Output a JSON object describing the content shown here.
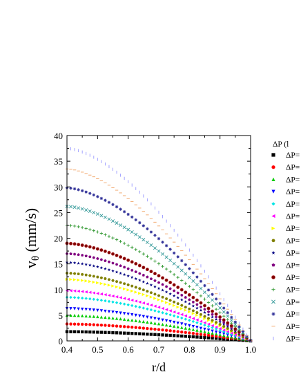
{
  "chart_data": {
    "type": "scatter",
    "xlabel": "r/d",
    "ylabel_main": "v",
    "ylabel_sub": "θ",
    "ylabel_unit": " (mm/s)",
    "xlim": [
      0.4,
      1.0
    ],
    "ylim": [
      0,
      40
    ],
    "x_ticks": [
      "0.4",
      "0.5",
      "0.6",
      "0.7",
      "0.8",
      "0.9",
      "1.0"
    ],
    "y_ticks": [
      "0",
      "5",
      "10",
      "15",
      "20",
      "25",
      "30",
      "35",
      "40"
    ],
    "legend_title": "ΔP (l",
    "legend_label": "ΔP=",
    "legend_position": "right",
    "series": [
      {
        "marker": "square",
        "color": "#000000",
        "v0": 1.8,
        "p": 1.6
      },
      {
        "marker": "circle",
        "color": "#ff0000",
        "v0": 3.3,
        "p": 1.6
      },
      {
        "marker": "triangle",
        "color": "#00cc00",
        "v0": 5.0,
        "p": 1.6
      },
      {
        "marker": "triangle-down",
        "color": "#0000ff",
        "v0": 6.3,
        "p": 1.6
      },
      {
        "marker": "diamond",
        "color": "#00e5e5",
        "v0": 8.5,
        "p": 1.6
      },
      {
        "marker": "triangle-left",
        "color": "#ff00ff",
        "v0": 9.8,
        "p": 1.6
      },
      {
        "marker": "triangle-right",
        "color": "#ffff00",
        "v0": 12.0,
        "p": 1.6
      },
      {
        "marker": "hexagon",
        "color": "#808000",
        "v0": 13.2,
        "p": 1.6
      },
      {
        "marker": "star",
        "color": "#000080",
        "v0": 15.3,
        "p": 1.6
      },
      {
        "marker": "pentagon",
        "color": "#800080",
        "v0": 17.0,
        "p": 1.6
      },
      {
        "marker": "circle-half",
        "color": "#800000",
        "v0": 19.0,
        "p": 1.6
      },
      {
        "marker": "plus",
        "color": "#339933",
        "v0": 22.5,
        "p": 1.6
      },
      {
        "marker": "x",
        "color": "#339999",
        "v0": 26.2,
        "p": 1.6
      },
      {
        "marker": "asterisk",
        "color": "#333399",
        "v0": 29.8,
        "p": 1.6
      },
      {
        "marker": "hline",
        "color": "#f0a060",
        "v0": 33.5,
        "p": 1.6
      },
      {
        "marker": "vline",
        "color": "#9999ff",
        "v0": 37.5,
        "p": 1.6
      }
    ]
  }
}
